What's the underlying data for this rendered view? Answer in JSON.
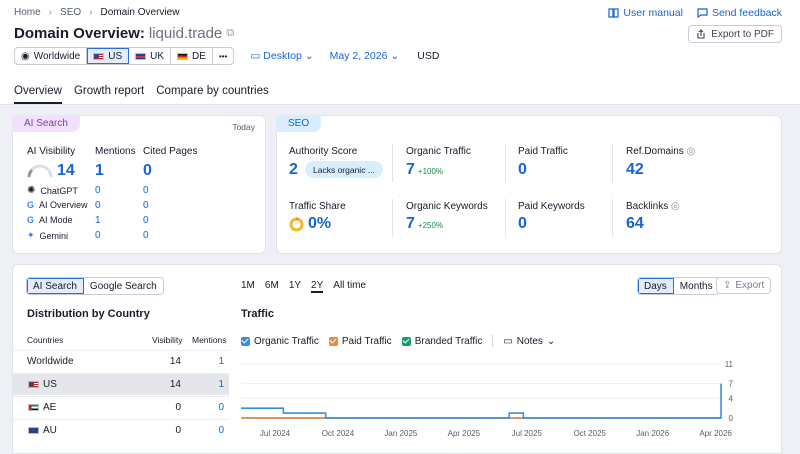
{
  "breadcrumb": {
    "home": "Home",
    "seo": "SEO",
    "current": "Domain Overview"
  },
  "header_links": {
    "manual": "User manual",
    "feedback": "Send feedback"
  },
  "title": {
    "prefix": "Domain Overview:",
    "domain": "liquid.trade"
  },
  "export_pdf": "Export to PDF",
  "filters": {
    "worldwide": "Worldwide",
    "us": "US",
    "uk": "UK",
    "de": "DE",
    "more": "•••",
    "device": "Desktop",
    "date": "May 2, 2026",
    "currency": "USD"
  },
  "tabs": [
    "Overview",
    "Growth report",
    "Compare by countries"
  ],
  "ai_card": {
    "pill": "AI Search",
    "today": "Today",
    "visibility_label": "AI Visibility",
    "visibility_value": "14",
    "mentions_label": "Mentions",
    "mentions_value": "1",
    "cited_label": "Cited Pages",
    "cited_value": "0",
    "rows": [
      {
        "name": "ChatGPT",
        "mentions": "0",
        "cited": "0"
      },
      {
        "name": "AI Overview",
        "mentions": "0",
        "cited": "0"
      },
      {
        "name": "AI Mode",
        "mentions": "1",
        "cited": "0"
      },
      {
        "name": "Gemini",
        "mentions": "0",
        "cited": "0"
      }
    ]
  },
  "seo_card": {
    "pill": "SEO",
    "authority_label": "Authority Score",
    "authority_value": "2",
    "authority_badge": "Lacks organic ...",
    "organic_traffic_label": "Organic Traffic",
    "organic_traffic_value": "7",
    "organic_traffic_delta": "+100%",
    "paid_traffic_label": "Paid Traffic",
    "paid_traffic_value": "0",
    "ref_domains_label": "Ref.Domains",
    "ref_domains_value": "42",
    "traffic_share_label": "Traffic Share",
    "traffic_share_value": "0%",
    "organic_kw_label": "Organic Keywords",
    "organic_kw_value": "7",
    "organic_kw_delta": "+250%",
    "paid_kw_label": "Paid Keywords",
    "paid_kw_value": "0",
    "backlinks_label": "Backlinks",
    "backlinks_value": "64"
  },
  "bottom": {
    "toggle": [
      "AI Search",
      "Google Search"
    ],
    "dist_title": "Distribution by Country",
    "col_countries": "Countries",
    "col_visibility": "Visibility",
    "col_mentions": "Mentions",
    "countries": [
      {
        "name": "Worldwide",
        "visibility": "14",
        "mentions": "1"
      },
      {
        "name": "US",
        "visibility": "14",
        "mentions": "1"
      },
      {
        "name": "AE",
        "visibility": "0",
        "mentions": "0"
      },
      {
        "name": "AU",
        "visibility": "0",
        "mentions": "0"
      }
    ],
    "ranges": [
      "1M",
      "6M",
      "1Y",
      "2Y",
      "All time"
    ],
    "granularity": [
      "Days",
      "Months"
    ],
    "export": "Export",
    "traffic_title": "Traffic",
    "legend": {
      "organic": "Organic Traffic",
      "paid": "Paid Traffic",
      "branded": "Branded Traffic",
      "notes": "Notes"
    }
  },
  "chart_data": {
    "type": "line",
    "title": "Traffic",
    "x_ticks": [
      "Jul 2024",
      "Oct 2024",
      "Jan 2025",
      "Apr 2025",
      "Jul 2025",
      "Oct 2025",
      "Jan 2026",
      "Apr 2026"
    ],
    "y_ticks": [
      0,
      4,
      7,
      11
    ],
    "ylim": [
      0,
      11
    ],
    "series": [
      {
        "name": "Organic Traffic",
        "color": "#3a8ee6",
        "values": [
          2,
          2,
          2,
          1,
          1,
          1,
          0,
          0,
          0,
          0,
          0,
          0,
          0,
          0,
          0,
          0,
          0,
          0,
          0,
          1,
          0,
          0,
          0,
          0,
          0,
          0,
          0,
          0,
          0,
          0,
          0,
          0,
          0,
          0,
          7
        ]
      },
      {
        "name": "Paid Traffic",
        "color": "#f0883e",
        "values": [
          0,
          0,
          0,
          0,
          0,
          0,
          0,
          0,
          0,
          0,
          0,
          0,
          0,
          0,
          0,
          0,
          0,
          0,
          0,
          0,
          0,
          0,
          0,
          0,
          0,
          0,
          0,
          0,
          0,
          0,
          0,
          0,
          0,
          0,
          0
        ]
      },
      {
        "name": "Branded Traffic",
        "color": "#1e9a6a",
        "values": [
          0,
          0,
          0,
          0,
          0,
          0,
          0,
          0,
          0,
          0,
          0,
          0,
          0,
          0,
          0,
          0,
          0,
          0,
          0,
          0,
          0,
          0,
          0,
          0,
          0,
          0,
          0,
          0,
          0,
          0,
          0,
          0,
          0,
          0,
          0
        ]
      }
    ]
  }
}
